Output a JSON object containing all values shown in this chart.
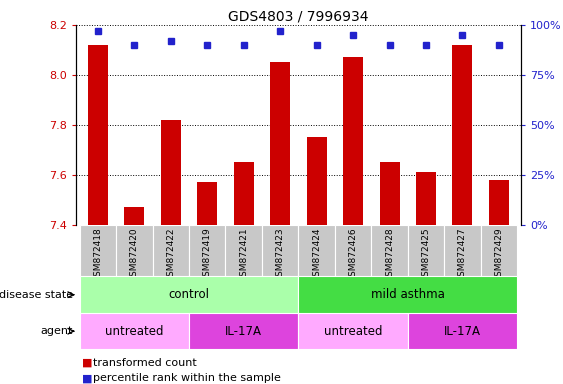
{
  "title": "GDS4803 / 7996934",
  "samples": [
    "GSM872418",
    "GSM872420",
    "GSM872422",
    "GSM872419",
    "GSM872421",
    "GSM872423",
    "GSM872424",
    "GSM872426",
    "GSM872428",
    "GSM872425",
    "GSM872427",
    "GSM872429"
  ],
  "red_values": [
    8.12,
    7.47,
    7.82,
    7.57,
    7.65,
    8.05,
    7.75,
    8.07,
    7.65,
    7.61,
    8.12,
    7.58
  ],
  "blue_percentiles": [
    97,
    90,
    92,
    90,
    90,
    97,
    90,
    95,
    90,
    90,
    95,
    90
  ],
  "ylim_left": [
    7.4,
    8.2
  ],
  "ylim_right": [
    0,
    100
  ],
  "yticks_left": [
    7.4,
    7.6,
    7.8,
    8.0,
    8.2
  ],
  "yticks_right": [
    0,
    25,
    50,
    75,
    100
  ],
  "bar_color": "#cc0000",
  "dot_color": "#2222cc",
  "disease_groups": [
    {
      "label": "control",
      "start": 0,
      "end": 6,
      "color": "#aaffaa"
    },
    {
      "label": "mild asthma",
      "start": 6,
      "end": 12,
      "color": "#44dd44"
    }
  ],
  "agent_groups": [
    {
      "label": "untreated",
      "start": 0,
      "end": 3,
      "color": "#ffaaff"
    },
    {
      "label": "IL-17A",
      "start": 3,
      "end": 6,
      "color": "#dd44dd"
    },
    {
      "label": "untreated",
      "start": 6,
      "end": 9,
      "color": "#ffaaff"
    },
    {
      "label": "IL-17A",
      "start": 9,
      "end": 12,
      "color": "#dd44dd"
    }
  ],
  "tick_label_bg": "#c8c8c8",
  "fig_width": 5.63,
  "fig_height": 3.84,
  "dpi": 100
}
